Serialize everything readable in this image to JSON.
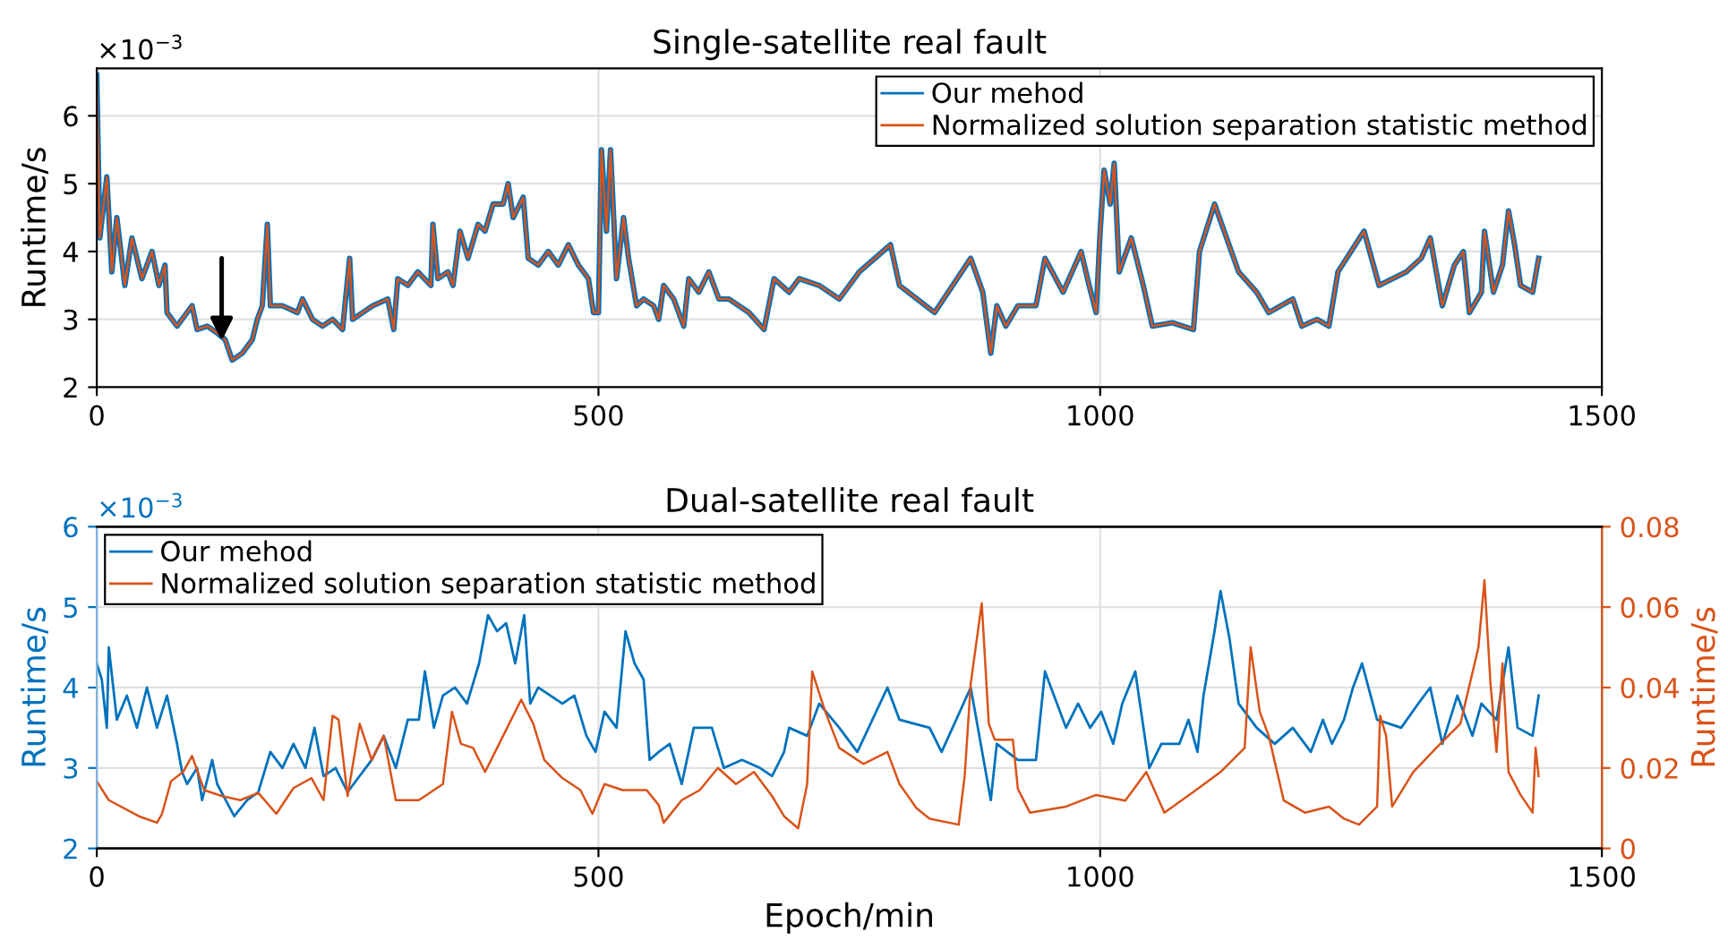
{
  "chart_data": [
    {
      "type": "line",
      "title": "Single-satellite real fault",
      "ylabel": "Runtime/s",
      "annotations": [
        "×10$^{−3}$"
      ],
      "xlim": [
        0,
        1500
      ],
      "xticks": [
        0,
        500,
        1000,
        1500
      ],
      "ylim": [
        2,
        6.7
      ],
      "yticks": [
        2,
        3,
        4,
        5,
        6
      ],
      "grid": true,
      "legend": "top right",
      "x": [
        0,
        3,
        10,
        15,
        20,
        28,
        35,
        45,
        55,
        62,
        68,
        70,
        80,
        95,
        100,
        110,
        120,
        128,
        135,
        145,
        155,
        160,
        165,
        170,
        173,
        185,
        200,
        205,
        215,
        225,
        235,
        245,
        252,
        255,
        275,
        290,
        296,
        300,
        310,
        320,
        333,
        335,
        340,
        350,
        355,
        362,
        370,
        380,
        387,
        395,
        405,
        410,
        415,
        425,
        430,
        440,
        450,
        460,
        470,
        480,
        490,
        495,
        500,
        503,
        508,
        512,
        518,
        525,
        530,
        538,
        545,
        555,
        560,
        565,
        575,
        585,
        590,
        600,
        610,
        620,
        630,
        650,
        665,
        675,
        690,
        700,
        720,
        740,
        760,
        791,
        800,
        835,
        871,
        883,
        891,
        897,
        906,
        918,
        936,
        945,
        963,
        981,
        989,
        996,
        1000,
        1004,
        1010,
        1014,
        1019,
        1031,
        1043,
        1052,
        1072,
        1093,
        1099,
        1114,
        1126,
        1138,
        1156,
        1168,
        1192,
        1201,
        1216,
        1228,
        1237,
        1263,
        1278,
        1305,
        1320,
        1329,
        1341,
        1353,
        1362,
        1368,
        1380,
        1383,
        1392,
        1401,
        1407,
        1413,
        1419,
        1431,
        1437
      ],
      "series": [
        {
          "name": "Our mehod",
          "color": "#0072bd",
          "values": [
            6.6,
            4.2,
            5.1,
            3.7,
            4.5,
            3.5,
            4.2,
            3.6,
            4.0,
            3.5,
            3.8,
            3.1,
            2.9,
            3.2,
            2.85,
            2.9,
            2.8,
            2.7,
            2.4,
            2.5,
            2.7,
            3.0,
            3.2,
            4.4,
            3.2,
            3.2,
            3.1,
            3.3,
            3.0,
            2.9,
            3.0,
            2.85,
            3.9,
            3.0,
            3.2,
            3.3,
            2.85,
            3.6,
            3.5,
            3.7,
            3.5,
            4.4,
            3.6,
            3.7,
            3.5,
            4.3,
            3.9,
            4.4,
            4.3,
            4.7,
            4.7,
            5.0,
            4.5,
            4.8,
            3.9,
            3.8,
            4.0,
            3.8,
            4.1,
            3.8,
            3.6,
            3.1,
            3.1,
            5.5,
            4.3,
            5.5,
            3.6,
            4.5,
            3.9,
            3.2,
            3.3,
            3.2,
            3.0,
            3.5,
            3.3,
            2.9,
            3.6,
            3.4,
            3.7,
            3.3,
            3.3,
            3.1,
            2.85,
            3.6,
            3.4,
            3.6,
            3.5,
            3.3,
            3.7,
            4.1,
            3.5,
            3.1,
            3.9,
            3.4,
            2.5,
            3.2,
            2.9,
            3.2,
            3.2,
            3.9,
            3.4,
            4.0,
            3.5,
            3.1,
            4.3,
            5.2,
            4.7,
            5.3,
            3.7,
            4.2,
            3.5,
            2.9,
            2.95,
            2.85,
            4.0,
            4.7,
            4.2,
            3.7,
            3.4,
            3.1,
            3.3,
            2.9,
            3.0,
            2.9,
            3.7,
            4.3,
            3.5,
            3.7,
            3.9,
            4.2,
            3.2,
            3.8,
            4.0,
            3.1,
            3.4,
            4.3,
            3.4,
            3.8,
            4.6,
            4.1,
            3.5,
            3.4,
            3.9
          ]
        },
        {
          "name": "Normalized solution separation statistic method",
          "color": "#d95319",
          "values": [
            6.6,
            4.2,
            5.1,
            3.7,
            4.5,
            3.5,
            4.2,
            3.6,
            4.0,
            3.5,
            3.8,
            3.1,
            2.9,
            3.2,
            2.85,
            2.9,
            2.8,
            2.7,
            2.4,
            2.5,
            2.7,
            3.0,
            3.2,
            4.4,
            3.2,
            3.2,
            3.1,
            3.3,
            3.0,
            2.9,
            3.0,
            2.85,
            3.9,
            3.0,
            3.2,
            3.3,
            2.85,
            3.6,
            3.5,
            3.7,
            3.5,
            4.4,
            3.6,
            3.7,
            3.5,
            4.3,
            3.9,
            4.4,
            4.3,
            4.7,
            4.7,
            5.0,
            4.5,
            4.8,
            3.9,
            3.8,
            4.0,
            3.8,
            4.1,
            3.8,
            3.6,
            3.1,
            3.1,
            5.5,
            4.3,
            5.5,
            3.6,
            4.5,
            3.9,
            3.2,
            3.3,
            3.2,
            3.0,
            3.5,
            3.3,
            2.9,
            3.6,
            3.4,
            3.7,
            3.3,
            3.3,
            3.1,
            2.85,
            3.6,
            3.4,
            3.6,
            3.5,
            3.3,
            3.7,
            4.1,
            3.5,
            3.1,
            3.9,
            3.4,
            2.5,
            3.2,
            2.9,
            3.2,
            3.2,
            3.9,
            3.4,
            4.0,
            3.5,
            3.1,
            4.3,
            5.2,
            4.7,
            5.3,
            3.7,
            4.2,
            3.5,
            2.9,
            2.95,
            2.85,
            4.0,
            4.7,
            4.2,
            3.7,
            3.4,
            3.1,
            3.3,
            2.9,
            3.0,
            2.9,
            3.7,
            4.3,
            3.5,
            3.7,
            3.9,
            4.2,
            3.2,
            3.8,
            4.0,
            3.1,
            3.4,
            4.3,
            3.4,
            3.8,
            4.6,
            4.1,
            3.5,
            3.4,
            3.9
          ]
        }
      ]
    },
    {
      "type": "line",
      "title": "Dual-satellite real fault",
      "xlabel": "Epoch/min",
      "ylabel": "Runtime/s",
      "y2label": "Runtime/s",
      "annotations": [
        "×10$^{−3}$"
      ],
      "xlim": [
        0,
        1500
      ],
      "xticks": [
        0,
        500,
        1000,
        1500
      ],
      "ylim": [
        2,
        6
      ],
      "yticks": [
        2,
        3,
        4,
        5,
        6
      ],
      "y2lim": [
        0,
        0.08
      ],
      "y2ticks": [
        0,
        0.02,
        0.04,
        0.06,
        0.08
      ],
      "grid": true,
      "legend": "top left",
      "series": [
        {
          "name": "Our mehod",
          "color": "#0072bd",
          "x": [
            0,
            5,
            10,
            12,
            20,
            30,
            40,
            50,
            60,
            70,
            80,
            85,
            90,
            100,
            105,
            115,
            120,
            137,
            150,
            161,
            173,
            185,
            196,
            208,
            217,
            226,
            238,
            250,
            262,
            274,
            286,
            298,
            310,
            321,
            327,
            336,
            345,
            357,
            369,
            381,
            390,
            399,
            408,
            417,
            426,
            432,
            440,
            452,
            464,
            476,
            488,
            497,
            506,
            518,
            527,
            536,
            545,
            551,
            560,
            571,
            583,
            595,
            613,
            625,
            643,
            661,
            673,
            685,
            690,
            708,
            720,
            740,
            758,
            788,
            800,
            830,
            842,
            871,
            891,
            897,
            918,
            936,
            945,
            954,
            966,
            978,
            990,
            1001,
            1013,
            1022,
            1035,
            1049,
            1061,
            1079,
            1088,
            1097,
            1103,
            1114,
            1120,
            1129,
            1138,
            1156,
            1174,
            1192,
            1210,
            1222,
            1231,
            1243,
            1252,
            1261,
            1276,
            1300,
            1317,
            1329,
            1341,
            1356,
            1371,
            1380,
            1395,
            1407,
            1416,
            1431,
            1437
          ],
          "values": [
            4.3,
            4.1,
            3.5,
            4.5,
            3.6,
            3.9,
            3.5,
            4.0,
            3.5,
            3.9,
            3.3,
            2.95,
            2.8,
            3.0,
            2.6,
            3.1,
            2.8,
            2.4,
            2.6,
            2.7,
            3.2,
            3.0,
            3.3,
            3.0,
            3.5,
            2.9,
            3.0,
            2.7,
            2.9,
            3.1,
            3.4,
            3.0,
            3.6,
            3.6,
            4.2,
            3.5,
            3.9,
            4.0,
            3.8,
            4.3,
            4.9,
            4.7,
            4.8,
            4.3,
            4.9,
            3.8,
            4.0,
            3.9,
            3.8,
            3.9,
            3.4,
            3.2,
            3.7,
            3.5,
            4.7,
            4.3,
            4.1,
            3.1,
            3.2,
            3.3,
            2.8,
            3.5,
            3.5,
            3.0,
            3.1,
            3.0,
            2.9,
            3.2,
            3.5,
            3.4,
            3.8,
            3.5,
            3.2,
            4.0,
            3.6,
            3.5,
            3.2,
            4.0,
            2.6,
            3.3,
            3.1,
            3.1,
            4.2,
            3.9,
            3.5,
            3.8,
            3.5,
            3.7,
            3.3,
            3.8,
            4.2,
            3.0,
            3.3,
            3.3,
            3.6,
            3.2,
            3.9,
            4.7,
            5.2,
            4.6,
            3.8,
            3.5,
            3.3,
            3.5,
            3.2,
            3.6,
            3.3,
            3.6,
            4.0,
            4.3,
            3.6,
            3.5,
            3.8,
            4.0,
            3.3,
            3.9,
            3.4,
            3.8,
            3.6,
            4.5,
            3.5,
            3.4,
            3.9
          ]
        },
        {
          "name": "Normalized solution separation statistic method",
          "color": "#d95319",
          "axis": "y2",
          "x": [
            0,
            12,
            42,
            60,
            65,
            74,
            86,
            95,
            107,
            125,
            143,
            161,
            179,
            196,
            214,
            226,
            235,
            241,
            250,
            262,
            274,
            286,
            298,
            321,
            345,
            354,
            363,
            375,
            387,
            399,
            411,
            423,
            435,
            446,
            464,
            482,
            494,
            506,
            524,
            548,
            560,
            565,
            583,
            601,
            619,
            637,
            655,
            673,
            685,
            699,
            708,
            713,
            726,
            740,
            764,
            788,
            800,
            817,
            830,
            859,
            865,
            871,
            882,
            889,
            895,
            913,
            918,
            930,
            966,
            996,
            1025,
            1046,
            1064,
            1097,
            1120,
            1144,
            1150,
            1159,
            1168,
            1183,
            1204,
            1228,
            1243,
            1258,
            1276,
            1279,
            1285,
            1291,
            1312,
            1335,
            1359,
            1377,
            1383,
            1389,
            1395,
            1401,
            1407,
            1419,
            1431,
            1434,
            1437
          ],
          "values": [
            0.0167,
            0.012,
            0.008,
            0.0064,
            0.0086,
            0.0167,
            0.019,
            0.023,
            0.0145,
            0.013,
            0.012,
            0.0138,
            0.0086,
            0.015,
            0.0175,
            0.012,
            0.033,
            0.032,
            0.013,
            0.031,
            0.022,
            0.028,
            0.012,
            0.012,
            0.016,
            0.034,
            0.026,
            0.025,
            0.019,
            0.025,
            0.031,
            0.037,
            0.031,
            0.022,
            0.0175,
            0.0145,
            0.0086,
            0.016,
            0.0145,
            0.0145,
            0.0108,
            0.0064,
            0.012,
            0.0145,
            0.02,
            0.016,
            0.019,
            0.013,
            0.008,
            0.005,
            0.016,
            0.044,
            0.034,
            0.025,
            0.021,
            0.024,
            0.016,
            0.01,
            0.0074,
            0.0059,
            0.018,
            0.041,
            0.061,
            0.031,
            0.027,
            0.027,
            0.0148,
            0.0089,
            0.0104,
            0.0133,
            0.0119,
            0.019,
            0.0089,
            0.0148,
            0.019,
            0.025,
            0.05,
            0.034,
            0.028,
            0.0119,
            0.0089,
            0.0104,
            0.0074,
            0.0059,
            0.0104,
            0.033,
            0.028,
            0.0104,
            0.019,
            0.025,
            0.031,
            0.05,
            0.0667,
            0.041,
            0.024,
            0.046,
            0.019,
            0.0133,
            0.0089,
            0.025,
            0.018
          ]
        }
      ]
    }
  ]
}
